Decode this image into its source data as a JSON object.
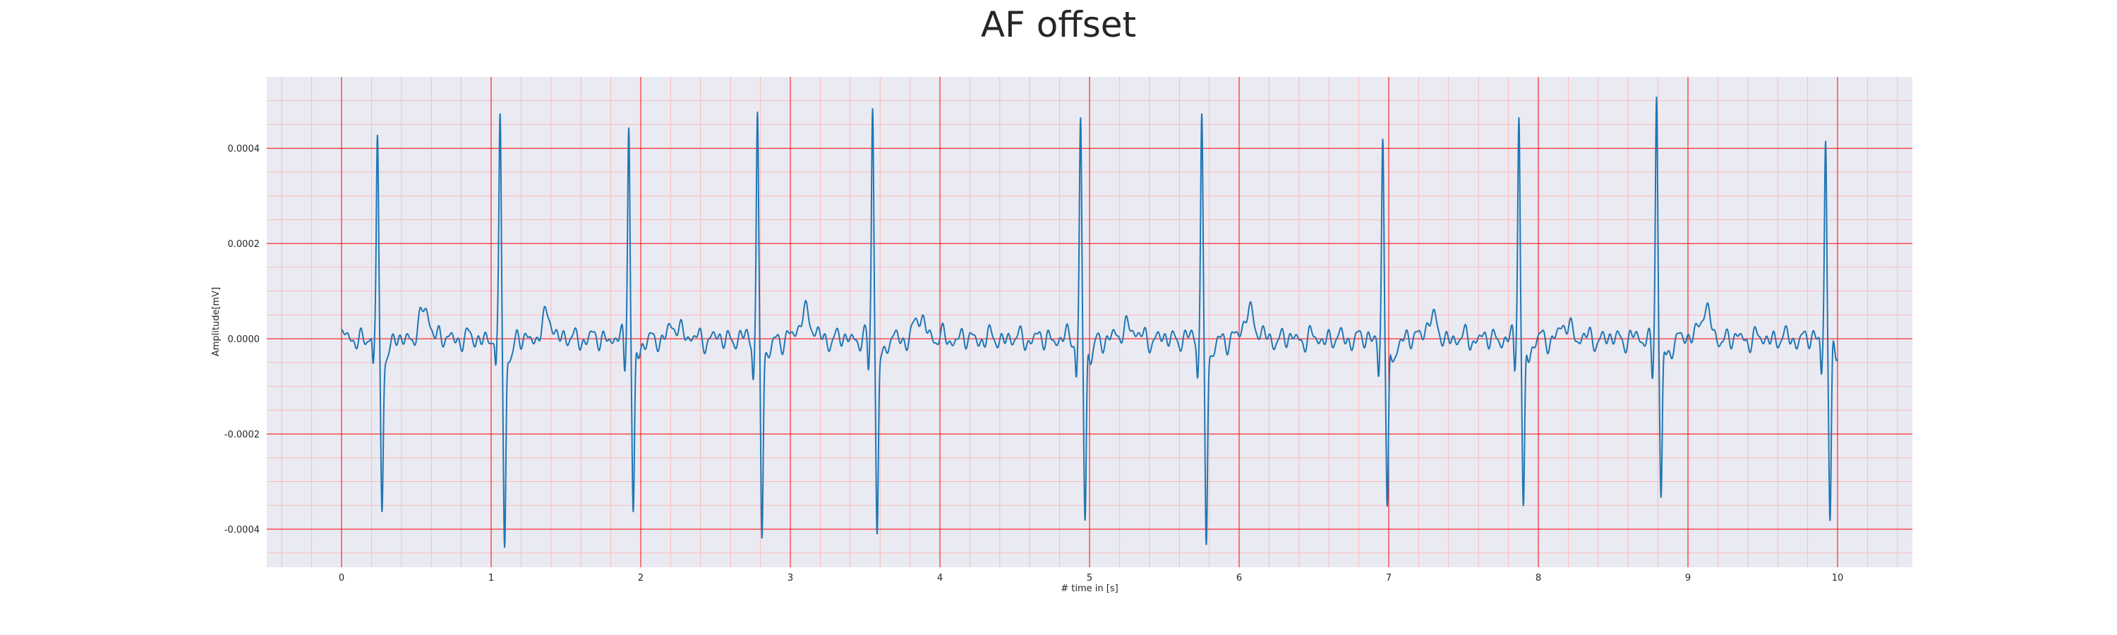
{
  "chart_data": {
    "type": "line",
    "title": "AF offset",
    "xlabel": "# time in [s]",
    "ylabel": "Amplitude[mV]",
    "xlim": [
      -0.5,
      10.5
    ],
    "ylim": [
      -0.00048,
      0.00055
    ],
    "x_ticks": [
      0,
      1,
      2,
      3,
      4,
      5,
      6,
      7,
      8,
      9,
      10
    ],
    "x_tick_labels": [
      "0",
      "1",
      "2",
      "3",
      "4",
      "5",
      "6",
      "7",
      "8",
      "9",
      "10"
    ],
    "y_ticks": [
      -0.0004,
      -0.0002,
      0.0,
      0.0002,
      0.0004
    ],
    "y_tick_labels": [
      "-0.0004",
      "-0.0002",
      "0.0000",
      "0.0002",
      "0.0004"
    ],
    "grid": true,
    "legend": "none",
    "colors": {
      "line": "#1f77b4",
      "plot_background": "#eaeaf2",
      "major_grid": "#ff0000",
      "minor_grid": "#ffb0b0",
      "text": "#262626"
    },
    "series": [
      {
        "beats": [
          {
            "t": 0.24,
            "peak": 0.00043,
            "trough": -0.00035
          },
          {
            "t": 1.06,
            "peak": 0.00047,
            "trough": -0.00043
          },
          {
            "t": 1.92,
            "peak": 0.00046,
            "trough": -0.00036
          },
          {
            "t": 2.78,
            "peak": 0.00047,
            "trough": -0.00041
          },
          {
            "t": 3.55,
            "peak": 0.00049,
            "trough": -0.0004
          },
          {
            "t": 4.94,
            "peak": 0.000455,
            "trough": -0.00038
          },
          {
            "t": 5.75,
            "peak": 0.000475,
            "trough": -0.00043
          },
          {
            "t": 6.96,
            "peak": 0.000435,
            "trough": -0.00038
          },
          {
            "t": 7.87,
            "peak": 0.00048,
            "trough": -0.000355
          },
          {
            "t": 8.79,
            "peak": 0.00051,
            "trough": -0.00034
          },
          {
            "t": 9.92,
            "peak": 0.000425,
            "trough": -0.00038
          }
        ],
        "t_start": 0.0,
        "t_end": 10.0
      }
    ]
  }
}
